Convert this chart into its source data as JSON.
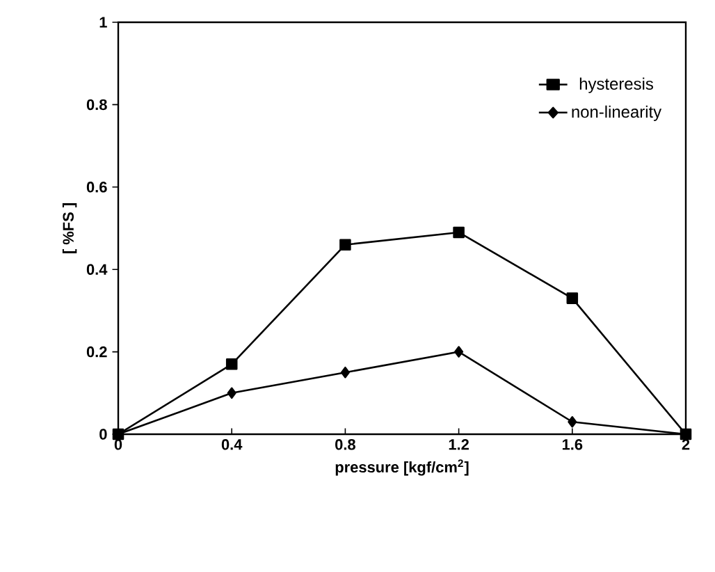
{
  "chart_data": {
    "type": "line",
    "xlabel": "pressure [kgf/cm$^{2}$]",
    "ylabel": "[ %FS ]",
    "x": [
      0,
      0.4,
      0.8,
      1.2,
      1.6,
      2
    ],
    "series": [
      {
        "name": "hysteresis",
        "color": "#000000",
        "marker": "square",
        "values": [
          0,
          0.17,
          0.46,
          0.49,
          0.33,
          0
        ]
      },
      {
        "name": "non-linearity",
        "color": "#000000",
        "marker": "diamond",
        "values": [
          0,
          0.1,
          0.15,
          0.2,
          0.03,
          0
        ]
      }
    ],
    "xlim": [
      0,
      2
    ],
    "ylim": [
      0,
      1
    ],
    "xticks": [
      0,
      0.4,
      0.8,
      1.2,
      1.6,
      2
    ],
    "yticks": [
      0,
      0.2,
      0.4,
      0.6,
      0.8,
      1
    ],
    "legend": "top right",
    "line_style": "solid"
  }
}
